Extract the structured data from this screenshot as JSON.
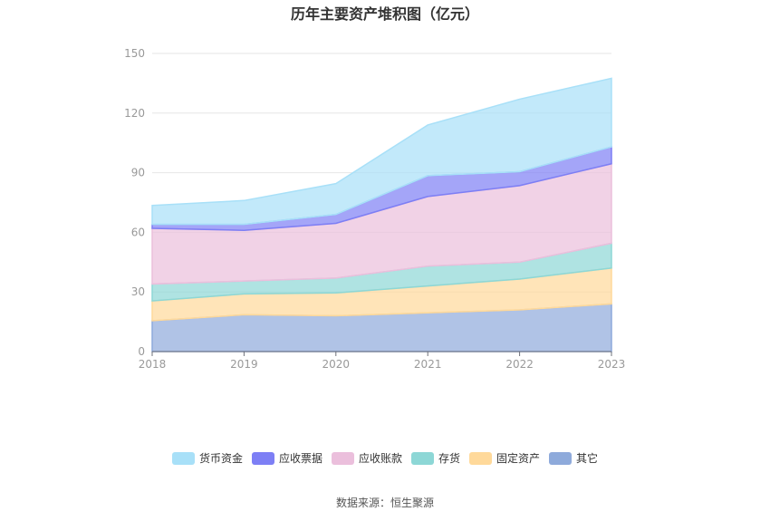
{
  "chart_data": {
    "type": "area",
    "stacked": true,
    "title": "历年主要资产堆积图（亿元）",
    "x": [
      "2018",
      "2019",
      "2020",
      "2021",
      "2022",
      "2023"
    ],
    "ylim": [
      0,
      150
    ],
    "yticks": [
      0,
      30,
      60,
      90,
      120,
      150
    ],
    "grid": true,
    "legend_position": "bottom",
    "series": [
      {
        "name": "其它",
        "color": "#8eaadb",
        "values": [
          15.5,
          18.5,
          18.0,
          19.5,
          21.0,
          24.0
        ]
      },
      {
        "name": "固定资产",
        "color": "#ffd99a",
        "values": [
          10.0,
          10.5,
          11.5,
          13.5,
          15.5,
          18.0
        ]
      },
      {
        "name": "存货",
        "color": "#8dd7d6",
        "values": [
          8.5,
          6.5,
          7.5,
          10.0,
          8.5,
          12.5
        ]
      },
      {
        "name": "应收账款",
        "color": "#ebbfdc",
        "values": [
          28.0,
          25.5,
          27.5,
          35.0,
          38.5,
          40.0
        ]
      },
      {
        "name": "应收票据",
        "color": "#7d7ff5",
        "values": [
          2.0,
          3.0,
          4.5,
          10.5,
          7.0,
          8.5
        ]
      },
      {
        "name": "货币资金",
        "color": "#a8e0f8",
        "values": [
          9.5,
          12.0,
          15.5,
          25.5,
          36.5,
          34.5
        ]
      }
    ],
    "legend_order": [
      "货币资金",
      "应收票据",
      "应收账款",
      "存货",
      "固定资产",
      "其它"
    ]
  },
  "source": "数据来源：恒生聚源"
}
